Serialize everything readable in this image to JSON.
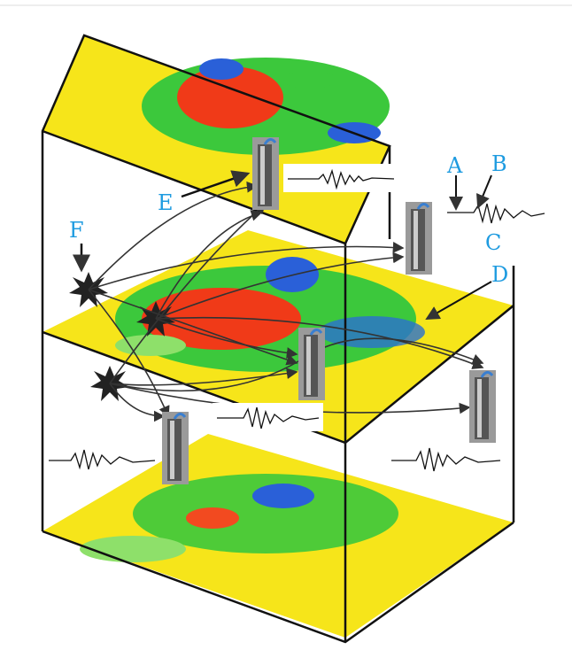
{
  "labels": {
    "a": "A",
    "b": "B",
    "c": "C",
    "d": "D",
    "e": "E",
    "f": "F"
  }
}
